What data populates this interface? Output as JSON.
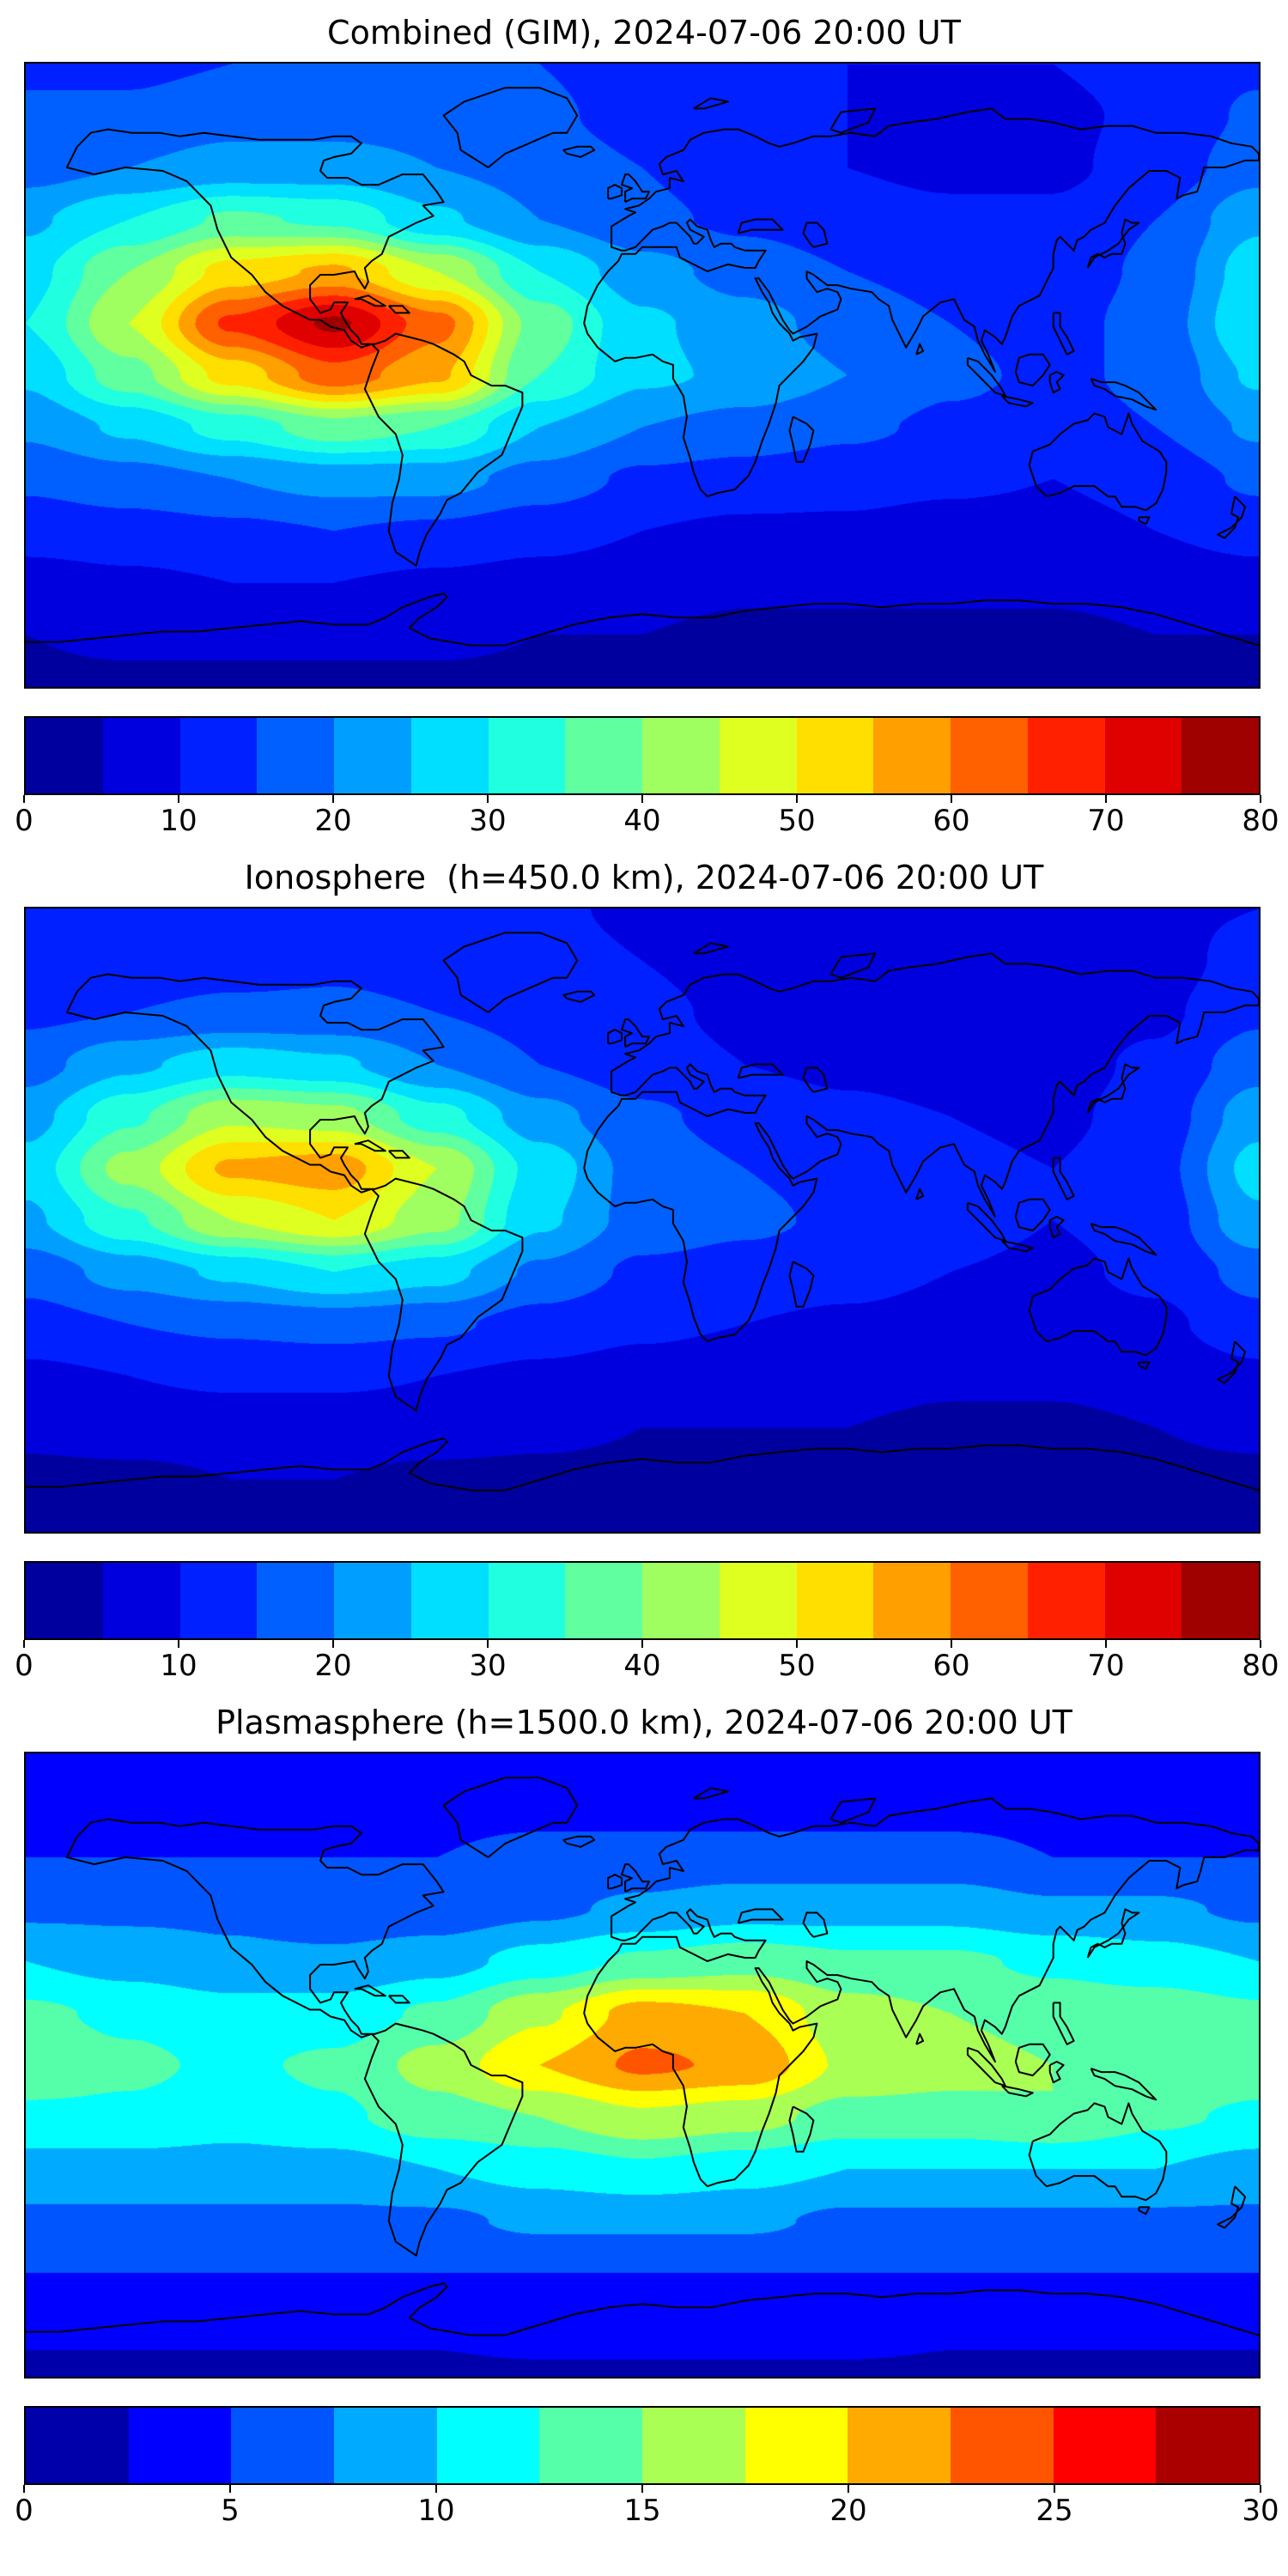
{
  "figure": {
    "background": "#ffffff",
    "colormap": "jet",
    "colormap_endpoints": {
      "low": "#000080",
      "high": "#800000"
    }
  },
  "chart_data": [
    {
      "type": "heatmap",
      "title": "Combined (GIM), 2024-07-06 20:00 UT",
      "projection": "equirectangular",
      "lon_range": [
        -180,
        180
      ],
      "lat_range": [
        -90,
        90
      ],
      "colormap": "jet",
      "grid_on": false,
      "colorbar": {
        "min": 0,
        "max": 80,
        "levels": 16,
        "ticks": [
          0,
          10,
          20,
          30,
          40,
          50,
          60,
          70,
          80
        ],
        "orientation": "horizontal"
      },
      "grid": {
        "lons": [
          -180,
          -150,
          -120,
          -90,
          -60,
          -30,
          0,
          30,
          60,
          90,
          120,
          150,
          180
        ],
        "lats": [
          90,
          75,
          60,
          45,
          30,
          15,
          0,
          -15,
          -30,
          -45,
          -60,
          -75,
          -90
        ],
        "values": [
          [
            14,
            14,
            15,
            16,
            16,
            15,
            12,
            10,
            10,
            10,
            10,
            12,
            14
          ],
          [
            16,
            16,
            18,
            18,
            18,
            16,
            13,
            11,
            10,
            9,
            9,
            11,
            16
          ],
          [
            18,
            20,
            22,
            22,
            20,
            18,
            15,
            12,
            10,
            9,
            9,
            12,
            18
          ],
          [
            24,
            30,
            36,
            34,
            26,
            20,
            16,
            14,
            12,
            11,
            11,
            15,
            24
          ],
          [
            28,
            40,
            52,
            56,
            45,
            30,
            22,
            18,
            15,
            13,
            12,
            16,
            28
          ],
          [
            30,
            45,
            66,
            76,
            62,
            38,
            26,
            22,
            18,
            15,
            13,
            17,
            30
          ],
          [
            26,
            38,
            52,
            63,
            56,
            35,
            26,
            24,
            20,
            16,
            14,
            16,
            26
          ],
          [
            21,
            26,
            32,
            38,
            35,
            25,
            20,
            18,
            16,
            14,
            13,
            15,
            21
          ],
          [
            16,
            18,
            20,
            22,
            22,
            18,
            14,
            13,
            12,
            11,
            10,
            12,
            16
          ],
          [
            12,
            13,
            14,
            15,
            14,
            12,
            10,
            9,
            9,
            8,
            8,
            10,
            12
          ],
          [
            8,
            9,
            10,
            10,
            9,
            8,
            7,
            6,
            6,
            6,
            6,
            7,
            8
          ],
          [
            5,
            6,
            6,
            6,
            6,
            5,
            5,
            4,
            4,
            4,
            4,
            5,
            5
          ],
          [
            4,
            4,
            4,
            4,
            4,
            4,
            4,
            4,
            4,
            4,
            4,
            4,
            4
          ]
        ]
      }
    },
    {
      "type": "heatmap",
      "title": "Ionosphere  (h=450.0 km), 2024-07-06 20:00 UT",
      "projection": "equirectangular",
      "lon_range": [
        -180,
        180
      ],
      "lat_range": [
        -90,
        90
      ],
      "colormap": "jet",
      "grid_on": false,
      "colorbar": {
        "min": 0,
        "max": 80,
        "levels": 16,
        "ticks": [
          0,
          10,
          20,
          30,
          40,
          50,
          60,
          70,
          80
        ],
        "orientation": "horizontal"
      },
      "grid": {
        "lons": [
          -180,
          -150,
          -120,
          -90,
          -60,
          -30,
          0,
          30,
          60,
          90,
          120,
          150,
          180
        ],
        "lats": [
          90,
          75,
          60,
          45,
          30,
          15,
          0,
          -15,
          -30,
          -45,
          -60,
          -75,
          -90
        ],
        "values": [
          [
            10,
            10,
            11,
            12,
            12,
            11,
            9,
            8,
            8,
            8,
            8,
            9,
            10
          ],
          [
            12,
            12,
            13,
            14,
            13,
            12,
            10,
            8,
            8,
            7,
            7,
            8,
            12
          ],
          [
            14,
            15,
            16,
            16,
            15,
            13,
            11,
            9,
            8,
            7,
            7,
            9,
            14
          ],
          [
            18,
            24,
            28,
            26,
            20,
            15,
            12,
            10,
            9,
            8,
            8,
            11,
            18
          ],
          [
            23,
            34,
            44,
            42,
            32,
            22,
            16,
            13,
            11,
            10,
            9,
            12,
            23
          ],
          [
            27,
            42,
            56,
            58,
            45,
            28,
            18,
            15,
            13,
            11,
            10,
            13,
            27
          ],
          [
            24,
            34,
            45,
            50,
            42,
            26,
            18,
            16,
            14,
            12,
            10,
            12,
            24
          ],
          [
            17,
            22,
            26,
            30,
            27,
            19,
            14,
            13,
            12,
            10,
            9,
            11,
            17
          ],
          [
            13,
            15,
            16,
            17,
            16,
            13,
            11,
            10,
            9,
            8,
            8,
            9,
            13
          ],
          [
            9,
            10,
            11,
            11,
            10,
            9,
            8,
            7,
            7,
            6,
            6,
            7,
            9
          ],
          [
            6,
            7,
            7,
            7,
            7,
            6,
            5,
            5,
            5,
            4,
            4,
            5,
            6
          ],
          [
            4,
            4,
            5,
            5,
            4,
            4,
            4,
            3,
            3,
            3,
            3,
            4,
            4
          ],
          [
            3,
            3,
            3,
            3,
            3,
            3,
            3,
            3,
            3,
            3,
            3,
            3,
            3
          ]
        ]
      }
    },
    {
      "type": "heatmap",
      "title": "Plasmasphere (h=1500.0 km), 2024-07-06 20:00 UT",
      "projection": "equirectangular",
      "lon_range": [
        -180,
        180
      ],
      "lat_range": [
        -90,
        90
      ],
      "colormap": "jet",
      "grid_on": false,
      "colorbar": {
        "min": 0,
        "max": 30,
        "levels": 12,
        "ticks": [
          0,
          5,
          10,
          15,
          20,
          25,
          30
        ],
        "orientation": "horizontal"
      },
      "grid": {
        "lons": [
          -180,
          -150,
          -120,
          -90,
          -60,
          -30,
          0,
          30,
          60,
          90,
          120,
          150,
          180
        ],
        "lats": [
          90,
          75,
          60,
          45,
          30,
          15,
          0,
          -15,
          -30,
          -45,
          -60,
          -75,
          -90
        ],
        "values": [
          [
            3,
            3,
            3,
            3,
            3,
            3,
            3,
            3,
            3,
            3,
            3,
            3,
            3
          ],
          [
            4,
            4,
            4,
            4,
            4,
            4,
            4,
            4,
            4,
            4,
            4,
            4,
            4
          ],
          [
            5,
            5,
            5,
            5,
            5,
            6,
            6,
            6,
            6,
            6,
            5,
            5,
            5
          ],
          [
            7,
            7,
            7,
            6,
            6,
            7,
            8,
            9,
            9,
            9,
            8,
            8,
            7
          ],
          [
            10,
            9,
            8,
            8,
            9,
            11,
            13,
            14,
            13,
            13,
            12,
            11,
            10
          ],
          [
            13,
            12,
            11,
            11,
            13,
            17,
            21,
            20,
            16,
            15,
            14,
            14,
            13
          ],
          [
            14,
            13,
            12,
            13,
            16,
            20,
            23,
            22,
            17,
            16,
            15,
            15,
            14
          ],
          [
            12,
            12,
            11,
            12,
            14,
            15,
            17,
            16,
            14,
            14,
            15,
            13,
            12
          ],
          [
            9,
            9,
            9,
            9,
            10,
            11,
            12,
            11,
            10,
            10,
            10,
            10,
            9
          ],
          [
            7,
            7,
            7,
            7,
            7,
            8,
            8,
            8,
            7,
            7,
            7,
            7,
            7
          ],
          [
            5,
            5,
            5,
            5,
            5,
            5,
            5,
            5,
            5,
            5,
            5,
            5,
            5
          ],
          [
            3,
            3,
            3,
            3,
            3,
            4,
            4,
            4,
            4,
            3,
            3,
            3,
            3
          ],
          [
            2,
            2,
            2,
            2,
            2,
            2,
            2,
            2,
            2,
            2,
            2,
            2,
            2
          ]
        ]
      }
    }
  ]
}
